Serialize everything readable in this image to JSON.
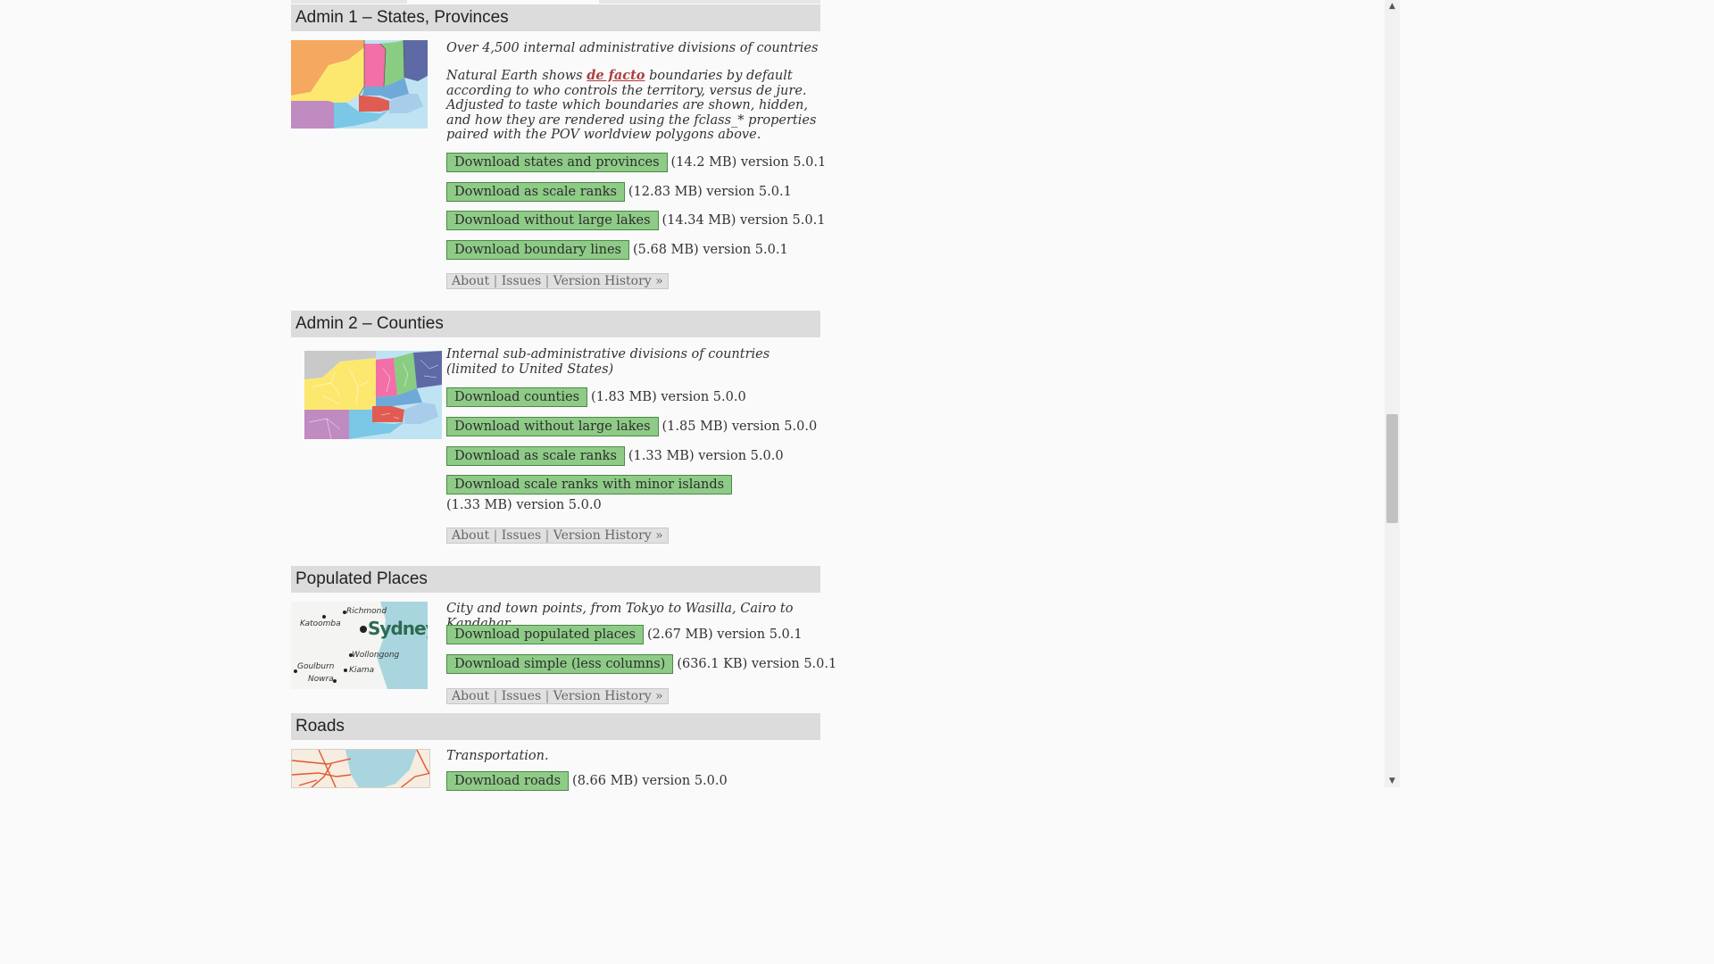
{
  "sections": {
    "admin1": {
      "title": "Admin 1 – States, Provinces",
      "desc1": "Over 4,500 internal administrative divisions of countries",
      "desc2_pre": "Natural Earth shows ",
      "desc2_link": "de facto",
      "desc2_post": " boundaries by default according to who controls the territory, versus de jure. Adjusted to taste which boundaries are shown, hidden, and how they are rendered using the fclass_* properties paired with the POV worldview polygons above.",
      "downloads": [
        {
          "label": "Download states and provinces",
          "meta": "(14.2 MB) version 5.0.1"
        },
        {
          "label": "Download as scale ranks",
          "meta": "(12.83 MB) version 5.0.1"
        },
        {
          "label": "Download without large lakes",
          "meta": "(14.34 MB) version 5.0.1"
        },
        {
          "label": "Download boundary lines",
          "meta": "(5.68 MB) version 5.0.1"
        }
      ],
      "links": {
        "about": "About",
        "issues": "Issues",
        "history": "Version History »"
      }
    },
    "admin2": {
      "title": "Admin 2 – Counties",
      "desc1": "Internal sub-administrative divisions of countries (limited to United States)",
      "downloads": [
        {
          "label": "Download counties",
          "meta": "(1.83 MB) version 5.0.0"
        },
        {
          "label": "Download without large lakes",
          "meta": "(1.85 MB) version 5.0.0"
        },
        {
          "label": "Download as scale ranks",
          "meta": "(1.33 MB) version 5.0.0"
        },
        {
          "label": "Download scale ranks with minor islands",
          "meta": "(1.33 MB) version 5.0.0"
        }
      ],
      "links": {
        "about": "About",
        "issues": "Issues",
        "history": "Version History »"
      }
    },
    "places": {
      "title": "Populated Places",
      "desc1": "City and town points, from Tokyo to Wasilla, Cairo to Kandahar",
      "map_labels": {
        "richmond": "Richmond",
        "katoomba": "Katoomba",
        "sydney": "Sydney",
        "wollongong": "Wollongong",
        "goulburn": "Goulburn",
        "kiama": "Kiama",
        "nowra": "Nowra"
      },
      "downloads": [
        {
          "label": "Download populated places",
          "meta": "(2.67 MB) version 5.0.1"
        },
        {
          "label": "Download simple (less columns)",
          "meta": "(636.1 KB) version 5.0.1"
        }
      ],
      "links": {
        "about": "About",
        "issues": "Issues",
        "history": "Version History »"
      }
    },
    "roads": {
      "title": "Roads",
      "desc1": "Transportation.",
      "downloads": [
        {
          "label": "Download roads",
          "meta": "(8.66 MB) version 5.0.0"
        }
      ]
    }
  },
  "colors": {
    "button_bg": "#8ecb87",
    "button_border": "#4c8a47",
    "header_bg": "#dcdcdc",
    "link_red": "#b13c3c"
  }
}
